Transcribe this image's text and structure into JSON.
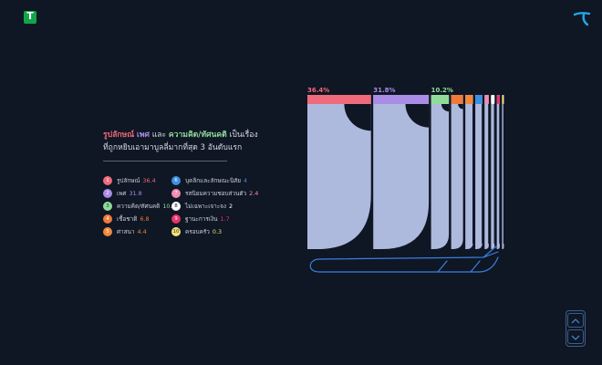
{
  "brand": {
    "left_logo": "T",
    "left_logo_color": "#13a44a",
    "right_logo_color": "#1ea7e4"
  },
  "heading": {
    "part1": "รูปลักษณ์",
    "part2": "เพศ",
    "part3": "และ",
    "part4": "ความคิด/ทัศนคติ",
    "part5": "เป็นเรื่อง",
    "line2": "ที่ถูกหยิบเอามาบูลลี่มากที่สุด 3 อันดับแรก"
  },
  "legend": [
    {
      "num": "1",
      "label": "รูปลักษณ์",
      "value": "36.4",
      "color": "#ef6a7a"
    },
    {
      "num": "2",
      "label": "เพศ",
      "value": "31.8",
      "color": "#a88ce6"
    },
    {
      "num": "3",
      "label": "ความคิด/ทัศนคติ",
      "value": "10.2",
      "color": "#8fdc9a"
    },
    {
      "num": "4",
      "label": "เชื้อชาติ",
      "value": "6.8",
      "color": "#f07a3a"
    },
    {
      "num": "5",
      "label": "ศาสนา",
      "value": "4.4",
      "color": "#f2883a"
    },
    {
      "num": "6",
      "label": "บุคลิกและลักษณะนิสัย",
      "value": "4",
      "color": "#3a8fe0"
    },
    {
      "num": "7",
      "label": "รสนิยมความชอบส่วนตัว",
      "value": "2.4",
      "color": "#f28cb0"
    },
    {
      "num": "8",
      "label": "ไม่เฉพาะเจาะจง",
      "value": "2",
      "color": "#ffffff"
    },
    {
      "num": "9",
      "label": "ฐานะการเงิน",
      "value": "1.7",
      "color": "#e8336a"
    },
    {
      "num": "10",
      "label": "ครอบครัว",
      "value": "0.3",
      "color": "#f2e27a"
    }
  ],
  "chart_data": {
    "type": "bar",
    "categories": [
      "รูปลักษณ์",
      "เพศ",
      "ความคิด/ทัศนคติ",
      "เชื้อชาติ",
      "ศาสนา",
      "บุคลิกและลักษณะนิสัย",
      "รสนิยมความชอบส่วนตัว",
      "ไม่เฉพาะเจาะจง",
      "ฐานะการเงิน",
      "ครอบครัว"
    ],
    "values": [
      36.4,
      31.8,
      10.2,
      6.8,
      4.4,
      4,
      2.4,
      2,
      1.7,
      0.3
    ],
    "labels": [
      "36.4%",
      "31.8%",
      "10.2%"
    ],
    "colors": [
      "#ef6a7a",
      "#a88ce6",
      "#8fdc9a",
      "#f07a3a",
      "#f2883a",
      "#3a8fe0",
      "#f28cb0",
      "#ffffff",
      "#e8336a",
      "#f2e27a"
    ],
    "bar_color": "#aeb9de",
    "outline_color": "#3a7fe0"
  },
  "nav": {
    "up": "up",
    "down": "down"
  }
}
